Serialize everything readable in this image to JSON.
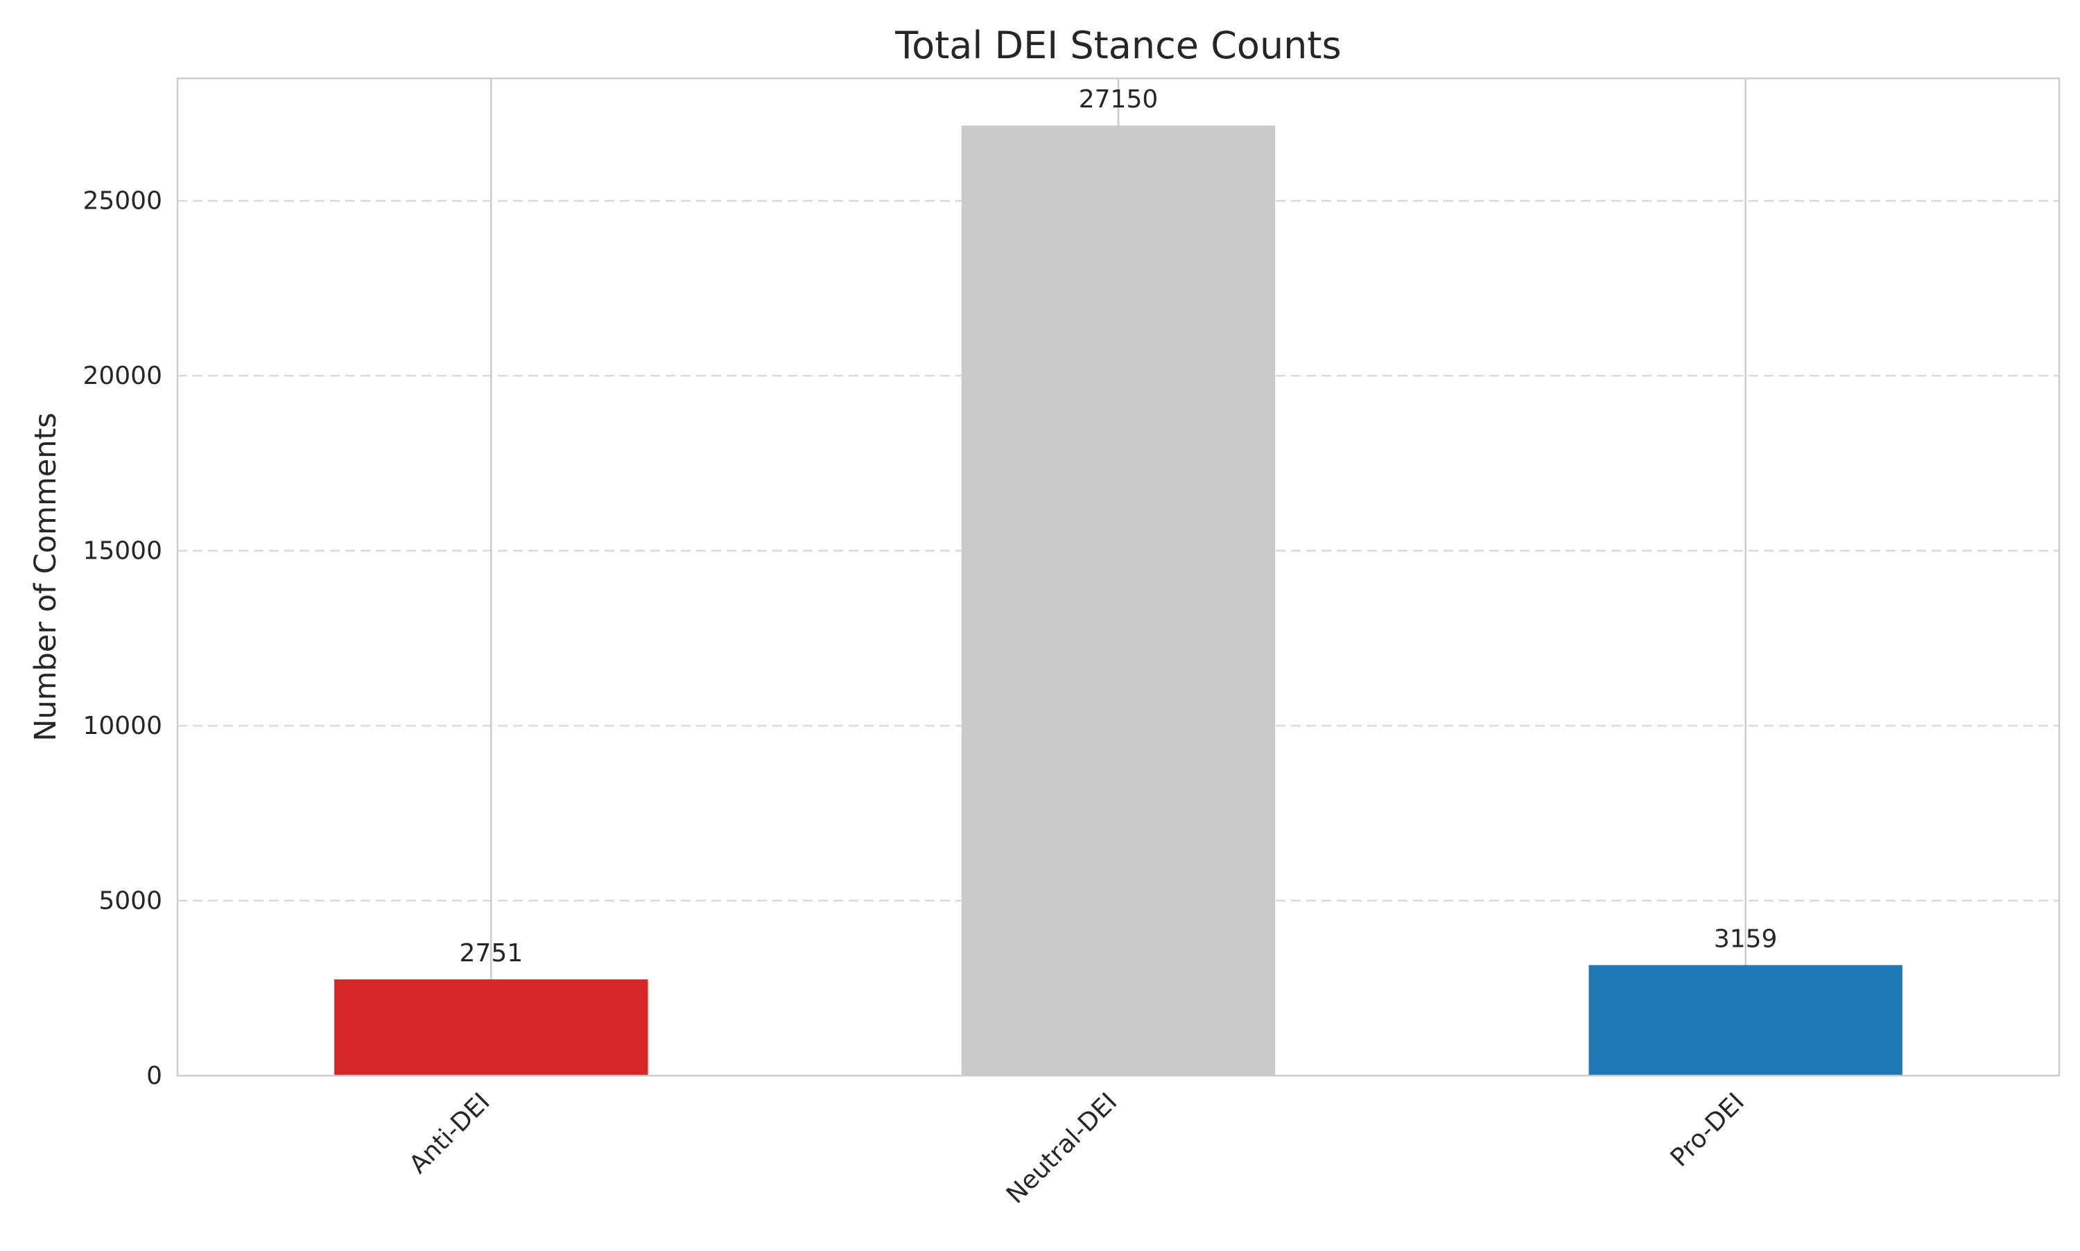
{
  "chart_data": {
    "type": "bar",
    "title": "Total DEI Stance Counts",
    "xlabel": "",
    "ylabel": "Number of Comments",
    "categories": [
      "Anti-DEI",
      "Neutral-DEI",
      "Pro-DEI"
    ],
    "values": [
      2751,
      27150,
      3159
    ],
    "data_labels": [
      "2751",
      "27150",
      "3159"
    ],
    "colors": [
      "#d62728",
      "#cacaca",
      "#1f77b4"
    ],
    "ylim": [
      0,
      28500
    ],
    "yticks": [
      0,
      5000,
      10000,
      15000,
      20000,
      25000
    ],
    "ytick_labels": [
      "0",
      "5000",
      "10000",
      "15000",
      "20000",
      "25000"
    ],
    "grid": {
      "y": "dashed",
      "x": "solid-at-categories"
    },
    "legend": "none"
  }
}
